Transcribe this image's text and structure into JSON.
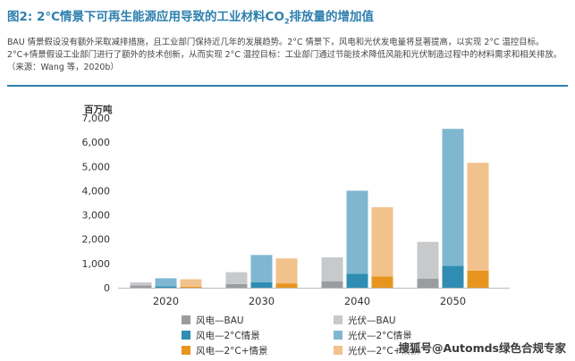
{
  "header": {
    "title_prefix": "图2: 2°C情景下可再生能源应用导致的工业材料CO",
    "title_sub": "2",
    "title_suffix": "排放量的增加值"
  },
  "caption": "BAU 情景假设没有额外采取减排措施，且工业部门保持近几年的发展趋势。2°C 情景下，风电和光伏发电量将显著提高，以实现 2°C 温控目标。2°C+情景假设工业部门进行了额外的技术创新，从而实现 2°C 温控目标：工业部门通过节能技术降低风能和光伏制造过程中的材料需求和相关排放。（来源：Wang 等，2020b）",
  "watermark": "搜狐号@Automds绿色合规专家",
  "colors": {
    "wind_bau": "#9a9c9f",
    "pv_bau": "#c7c9cb",
    "wind_2c": "#2f8db3",
    "pv_2c": "#7fb7d1",
    "wind_2cplus": "#e8951f",
    "pv_2cplus": "#f2c28c"
  },
  "chart_data": {
    "type": "bar",
    "stacked": true,
    "unit_label": "百万吨",
    "categories": [
      "2020",
      "2030",
      "2040",
      "2050"
    ],
    "ylim": [
      0,
      7000
    ],
    "yticks": [
      "0",
      "1,000",
      "2,000",
      "3,000",
      "4,000",
      "5,000",
      "6,000",
      "7,000"
    ],
    "grid": false,
    "groups": [
      {
        "scenario": "BAU",
        "wind": [
          100,
          150,
          270,
          380
        ],
        "pv": [
          120,
          490,
          980,
          1510
        ]
      },
      {
        "scenario": "2°C",
        "wind": [
          60,
          230,
          580,
          900
        ],
        "pv": [
          330,
          1120,
          3420,
          5650
        ]
      },
      {
        "scenario": "2°C+",
        "wind": [
          40,
          180,
          470,
          700
        ],
        "pv": [
          310,
          1030,
          2850,
          4450
        ]
      }
    ],
    "legend": [
      {
        "label": "风电—BAU",
        "color_key": "wind_bau"
      },
      {
        "label": "光伏—BAU",
        "color_key": "pv_bau"
      },
      {
        "label": "风电—2°C情景",
        "color_key": "wind_2c"
      },
      {
        "label": "光伏—2°C情景",
        "color_key": "pv_2c"
      },
      {
        "label": "风电—2°C+情景",
        "color_key": "wind_2cplus"
      },
      {
        "label": "光伏—2°C+情景",
        "color_key": "pv_2cplus"
      }
    ],
    "legend_placement": "bottom"
  }
}
